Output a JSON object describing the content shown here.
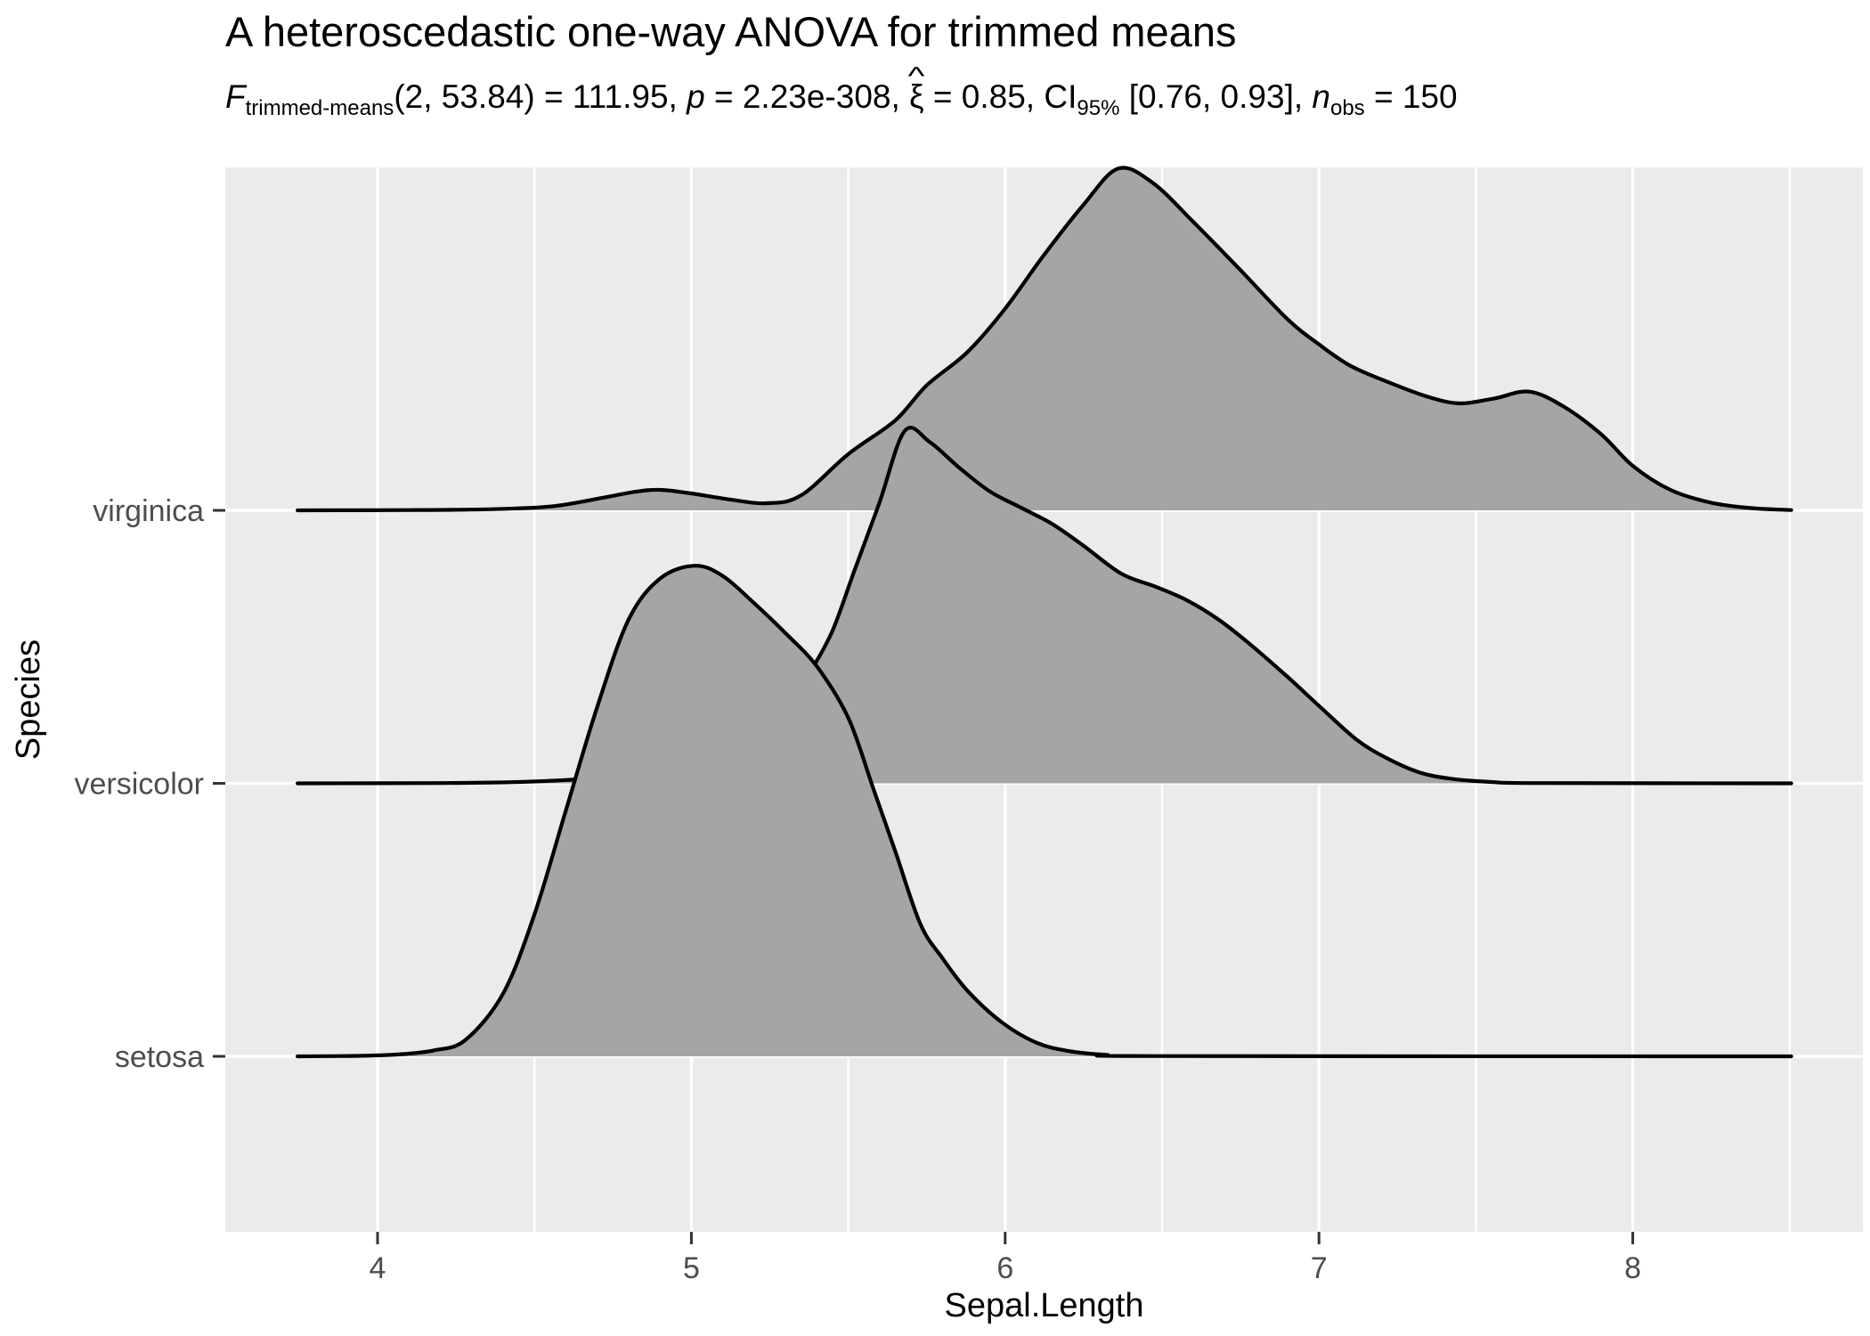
{
  "header": {
    "title": "A heteroscedastic one-way ANOVA for trimmed means",
    "subtitle_segments": [
      {
        "t": "F",
        "style": "i"
      },
      {
        "t": "trimmed-means",
        "style": "sub"
      },
      {
        "t": "(2, 53.84) = 111.95, ",
        "style": "n"
      },
      {
        "t": "p",
        "style": "i"
      },
      {
        "t": " = 2.23e-308, ",
        "style": "n"
      },
      {
        "t": "ξ",
        "style": "hat",
        "mark": "^"
      },
      {
        "t": " = 0.85, CI",
        "style": "n"
      },
      {
        "t": "95%",
        "style": "sub"
      },
      {
        "t": " [0.76, 0.93], ",
        "style": "n"
      },
      {
        "t": "n",
        "style": "i"
      },
      {
        "t": "obs",
        "style": "sub"
      },
      {
        "t": " = 150",
        "style": "n"
      }
    ]
  },
  "colors": {
    "background": "#FFFFFF",
    "panel_bg": "#EBEBEB",
    "grid": "#FFFFFF",
    "ridge_fill": "#A5A5A5",
    "ridge_line": "#000000",
    "tick_mark": "#333333",
    "tick_label": "#4D4D4D",
    "axis_title": "#000000"
  },
  "chart_data": {
    "type": "ridgeline-density",
    "title": "A heteroscedastic one-way ANOVA for trimmed means",
    "subtitle_plain": "F trimmed-means (2, 53.84) = 111.95, p = 2.23e-308, ξ̂ = 0.85, CI 95% [0.76, 0.93], n obs = 150",
    "xlabel": "Sepal.Length",
    "ylabel": "Species",
    "x_ticks": [
      4,
      5,
      6,
      7,
      8
    ],
    "x_tick_labels": [
      "4",
      "5",
      "6",
      "7",
      "8"
    ],
    "x_minor_ticks": [
      4.5,
      5.5,
      6.5,
      7.5,
      8.5
    ],
    "x_range": [
      3.515,
      8.735
    ],
    "y_categories": [
      "setosa",
      "versicolor",
      "virginica"
    ],
    "y_levels": [
      1,
      2,
      3
    ],
    "y_range_levels": [
      0.36,
      4.26
    ],
    "curve_x_extent": [
      3.745,
      8.505
    ],
    "height_unit": "1.0 = vertical distance between adjacent category baselines",
    "grid": {
      "vertical_major": true,
      "vertical_minor": true,
      "horizontal_at_categories": true
    },
    "legend": "none",
    "stats": {
      "F": "111.95",
      "df1": "2",
      "df2": "53.84",
      "p": "2.23e-308",
      "xi_hat": "0.85",
      "ci_95": "[0.76, 0.93]",
      "n_obs": "150"
    },
    "series": [
      {
        "name": "virginica",
        "level": 3,
        "points": [
          [
            3.745,
            0
          ],
          [
            4.1,
            0.001
          ],
          [
            4.35,
            0.004
          ],
          [
            4.55,
            0.014
          ],
          [
            4.7,
            0.042
          ],
          [
            4.82,
            0.068
          ],
          [
            4.9,
            0.075
          ],
          [
            5.0,
            0.062
          ],
          [
            5.12,
            0.04
          ],
          [
            5.24,
            0.026
          ],
          [
            5.35,
            0.055
          ],
          [
            5.5,
            0.206
          ],
          [
            5.65,
            0.33
          ],
          [
            5.75,
            0.458
          ],
          [
            5.88,
            0.58
          ],
          [
            6.0,
            0.739
          ],
          [
            6.12,
            0.93
          ],
          [
            6.25,
            1.12
          ],
          [
            6.36,
            1.252
          ],
          [
            6.47,
            1.2
          ],
          [
            6.6,
            1.056
          ],
          [
            6.75,
            0.88
          ],
          [
            6.9,
            0.7
          ],
          [
            7.0,
            0.608
          ],
          [
            7.1,
            0.53
          ],
          [
            7.22,
            0.47
          ],
          [
            7.35,
            0.415
          ],
          [
            7.45,
            0.392
          ],
          [
            7.56,
            0.41
          ],
          [
            7.67,
            0.435
          ],
          [
            7.78,
            0.38
          ],
          [
            7.9,
            0.278
          ],
          [
            8.0,
            0.163
          ],
          [
            8.12,
            0.075
          ],
          [
            8.25,
            0.028
          ],
          [
            8.38,
            0.008
          ],
          [
            8.505,
            0.001
          ]
        ]
      },
      {
        "name": "versicolor",
        "level": 2,
        "points": [
          [
            3.745,
            0
          ],
          [
            4.2,
            0.001
          ],
          [
            4.45,
            0.005
          ],
          [
            4.65,
            0.016
          ],
          [
            4.85,
            0.042
          ],
          [
            5.0,
            0.082
          ],
          [
            5.12,
            0.125
          ],
          [
            5.22,
            0.17
          ],
          [
            5.3,
            0.26
          ],
          [
            5.38,
            0.41
          ],
          [
            5.45,
            0.56
          ],
          [
            5.52,
            0.78
          ],
          [
            5.6,
            1.03
          ],
          [
            5.68,
            1.291
          ],
          [
            5.76,
            1.25
          ],
          [
            5.85,
            1.16
          ],
          [
            5.95,
            1.07
          ],
          [
            6.05,
            1.01
          ],
          [
            6.15,
            0.95
          ],
          [
            6.25,
            0.87
          ],
          [
            6.37,
            0.768
          ],
          [
            6.48,
            0.72
          ],
          [
            6.58,
            0.67
          ],
          [
            6.68,
            0.6
          ],
          [
            6.78,
            0.51
          ],
          [
            6.9,
            0.39
          ],
          [
            7.0,
            0.284
          ],
          [
            7.12,
            0.16
          ],
          [
            7.22,
            0.09
          ],
          [
            7.32,
            0.04
          ],
          [
            7.42,
            0.017
          ],
          [
            7.55,
            0.005
          ],
          [
            7.7,
            0.001
          ],
          [
            8.505,
            0
          ]
        ]
      },
      {
        "name": "setosa",
        "level": 1,
        "points": [
          [
            3.745,
            0
          ],
          [
            3.95,
            0.002
          ],
          [
            4.08,
            0.008
          ],
          [
            4.18,
            0.022
          ],
          [
            4.28,
            0.06
          ],
          [
            4.4,
            0.23
          ],
          [
            4.5,
            0.52
          ],
          [
            4.6,
            0.9
          ],
          [
            4.7,
            1.28
          ],
          [
            4.8,
            1.6
          ],
          [
            4.9,
            1.75
          ],
          [
            5.01,
            1.797
          ],
          [
            5.1,
            1.76
          ],
          [
            5.2,
            1.66
          ],
          [
            5.3,
            1.55
          ],
          [
            5.4,
            1.428
          ],
          [
            5.5,
            1.24
          ],
          [
            5.58,
            0.98
          ],
          [
            5.65,
            0.75
          ],
          [
            5.73,
            0.484
          ],
          [
            5.8,
            0.36
          ],
          [
            5.88,
            0.24
          ],
          [
            5.99,
            0.124
          ],
          [
            6.1,
            0.05
          ],
          [
            6.2,
            0.02
          ],
          [
            6.32,
            0.006
          ],
          [
            6.5,
            0.001
          ],
          [
            8.505,
            0
          ]
        ]
      }
    ]
  }
}
